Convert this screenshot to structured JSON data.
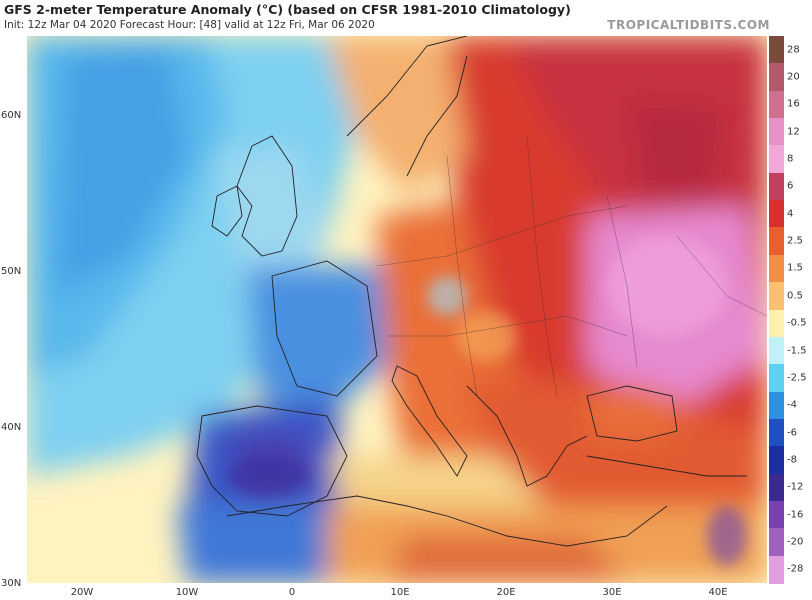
{
  "header": {
    "title": "GFS 2-meter Temperature Anomaly (°C) (based on CFSR 1981-2010 Climatology)",
    "subtitle": "Init: 12z Mar 04 2020   Forecast Hour: [48]   valid at 12z Fri, Mar 06 2020",
    "watermark": "TROPICALTIDBITS.COM"
  },
  "map": {
    "region": "Europe",
    "lat_labels": [
      "60N",
      "50N",
      "40N",
      "30N"
    ],
    "lon_labels": [
      "20W",
      "10W",
      "0",
      "10E",
      "20E",
      "30E",
      "40E"
    ],
    "colors": {
      "cold_deep": "#3a3fb8",
      "cold": "#4f8ee0",
      "cool": "#8fd3f0",
      "neutral": "#fff6c8",
      "warm": "#f09040",
      "hot": "#d2342a",
      "very_hot": "#a0203a",
      "extreme": "#e88ed8"
    }
  },
  "colorbar": {
    "labels": [
      "28",
      "20",
      "16",
      "12",
      "8",
      "6",
      "4",
      "2.5",
      "1.5",
      "0.5",
      "-0.5",
      "-1.5",
      "-2.5",
      "-4",
      "-6",
      "-8",
      "-12",
      "-16",
      "-20",
      "-28"
    ],
    "colors": [
      "#7a4a3a",
      "#b05a6a",
      "#d07090",
      "#e890c8",
      "#f0a8d8",
      "#c04060",
      "#d83030",
      "#e86030",
      "#f09048",
      "#f8c070",
      "#fff0b0",
      "#c0f0f8",
      "#60d0f0",
      "#3090e0",
      "#2050c0",
      "#1a30a0",
      "#3a2a90",
      "#7a40b0",
      "#a060c0",
      "#e0a0e0"
    ]
  }
}
